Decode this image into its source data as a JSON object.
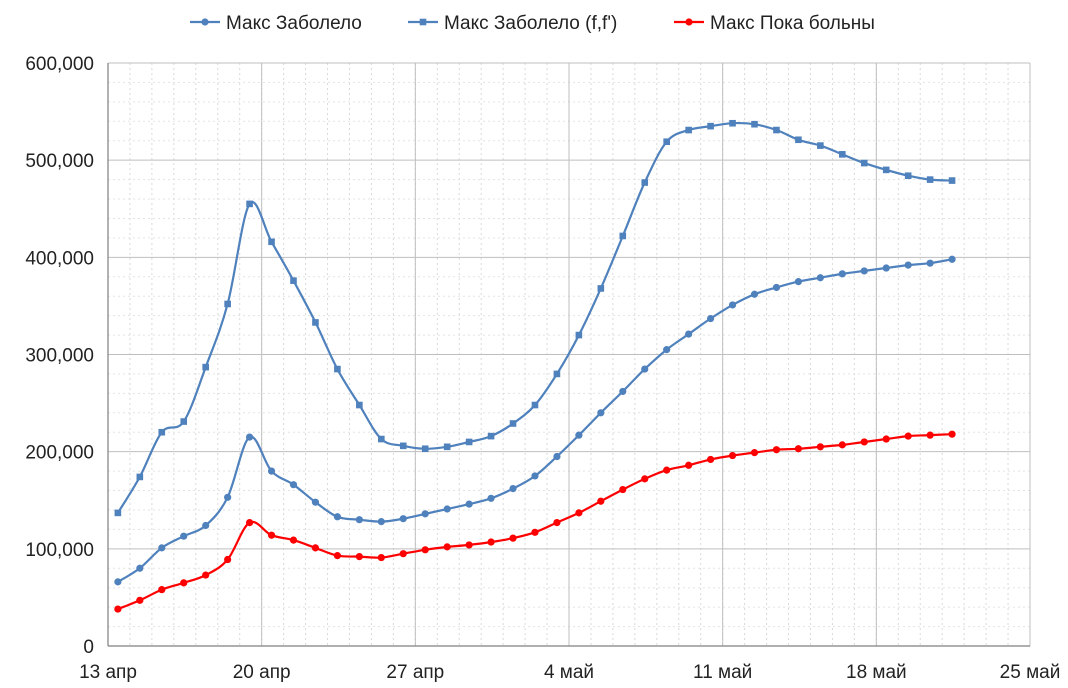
{
  "chart_data": {
    "type": "line",
    "legend_position": "top",
    "grid": true,
    "x_axis": {
      "type": "date",
      "ticks": [
        "13 апр",
        "20 апр",
        "27 апр",
        "4 май",
        "11 май",
        "18 май",
        "25 май"
      ],
      "range": [
        "13 апр",
        "25 май"
      ]
    },
    "y_axis": {
      "ylim": [
        0,
        600000
      ],
      "tick_values": [
        0,
        100000,
        200000,
        300000,
        400000,
        500000,
        600000
      ],
      "tick_labels": [
        "0",
        "100,000",
        "200,000",
        "300,000",
        "400,000",
        "500,000",
        "600,000"
      ]
    },
    "x": [
      "13 апр",
      "14 апр",
      "15 апр",
      "16 апр",
      "17 апр",
      "18 апр",
      "19 апр",
      "20 апр",
      "21 апр",
      "22 апр",
      "23 апр",
      "24 апр",
      "25 апр",
      "26 апр",
      "27 апр",
      "28 апр",
      "29 апр",
      "30 апр",
      "1 май",
      "2 май",
      "3 май",
      "4 май",
      "5 май",
      "6 май",
      "7 май",
      "8 май",
      "9 май",
      "10 май",
      "11 май",
      "12 май",
      "13 май",
      "14 май",
      "15 май",
      "16 май",
      "17 май",
      "18 май",
      "19 май",
      "20 май",
      "21 май"
    ],
    "series": [
      {
        "name": "Макс Заболело",
        "color": "#4f81bd",
        "marker": "circle",
        "values": [
          66000,
          80000,
          101000,
          113000,
          124000,
          153000,
          215000,
          180000,
          166000,
          148000,
          133000,
          130000,
          128000,
          131000,
          136000,
          141000,
          146000,
          152000,
          162000,
          175000,
          195000,
          217000,
          240000,
          262000,
          285000,
          305000,
          321000,
          337000,
          351000,
          362000,
          369000,
          375000,
          379000,
          383000,
          386000,
          389000,
          392000,
          394000,
          398000
        ]
      },
      {
        "name": "Макс Заболело (f,f')",
        "color": "#4f81bd",
        "marker": "square",
        "values": [
          137000,
          174000,
          220000,
          231000,
          287000,
          352000,
          455000,
          416000,
          376000,
          333000,
          285000,
          248000,
          213000,
          206000,
          203000,
          205000,
          210000,
          216000,
          229000,
          248000,
          280000,
          320000,
          368000,
          422000,
          477000,
          519000,
          531000,
          535000,
          538000,
          537000,
          531000,
          521000,
          515000,
          506000,
          497000,
          490000,
          484000,
          480000,
          479000
        ]
      },
      {
        "name": "Макс Пока больны",
        "color": "#ff0000",
        "marker": "circle",
        "values": [
          38000,
          47000,
          58000,
          65000,
          73000,
          89000,
          127000,
          114000,
          109000,
          101000,
          93000,
          92000,
          91000,
          95000,
          99000,
          102000,
          104000,
          107000,
          111000,
          117000,
          127000,
          137000,
          149000,
          161000,
          172000,
          181000,
          186000,
          192000,
          196000,
          199000,
          202000,
          203000,
          205000,
          207000,
          210000,
          213000,
          216000,
          217000,
          218000
        ]
      }
    ]
  }
}
